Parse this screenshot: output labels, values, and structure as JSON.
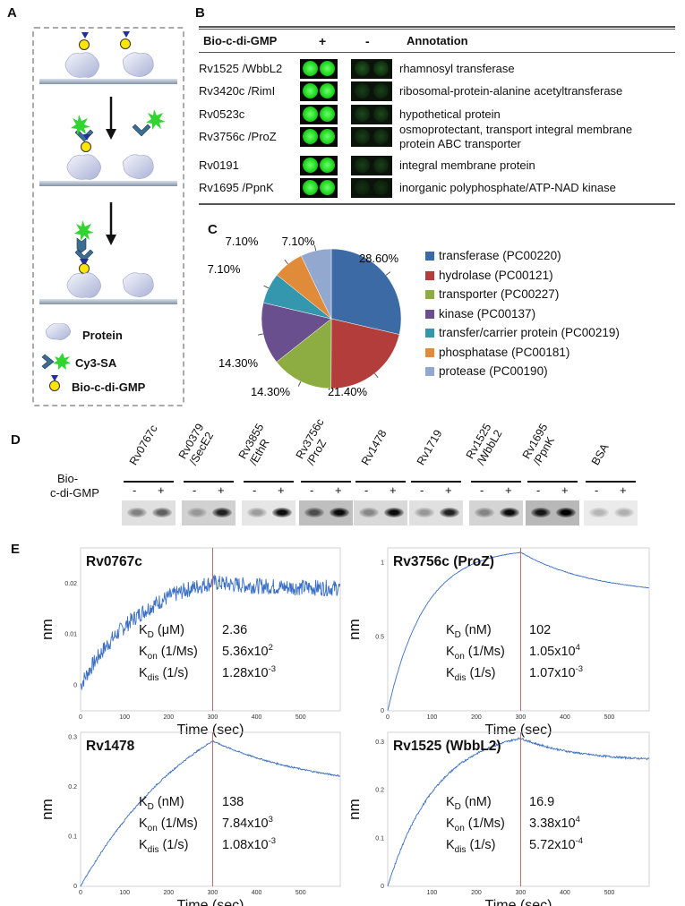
{
  "panels": {
    "a": "A",
    "b": "B",
    "c": "C",
    "d": "D",
    "e": "E"
  },
  "panel_a": {
    "legend": [
      {
        "icon": "protein-icon",
        "label": "Protein"
      },
      {
        "icon": "cy3-sa-icon",
        "label": "Cy3-SA"
      },
      {
        "icon": "bio-c-di-gmp-icon",
        "label": "Bio-c-di-GMP"
      }
    ]
  },
  "panel_b": {
    "header": {
      "col1": "Bio-c-di-GMP",
      "col2": "+",
      "col3": "-",
      "col4": "Annotation"
    },
    "rows": [
      {
        "name": "Rv1525 /WbbL2",
        "annotation": "rhamnosyl transferase",
        "annotation2": "",
        "minus_intensity": 0.45
      },
      {
        "name": "Rv3420c /RimI",
        "annotation": "ribosomal-protein-alanine acetyltransferase",
        "annotation2": "",
        "minus_intensity": 0.3
      },
      {
        "name": "Rv0523c",
        "annotation": "hypothetical protein",
        "annotation2": "",
        "minus_intensity": 0.35
      },
      {
        "name": "Rv3756c /ProZ",
        "annotation": "osmoprotectant, transport integral membrane",
        "annotation2": "protein ABC transporter",
        "minus_intensity": 0.3
      },
      {
        "name": "Rv0191",
        "annotation": "integral membrane protein",
        "annotation2": "",
        "minus_intensity": 0.3
      },
      {
        "name": "Rv1695 /PpnK",
        "annotation": "inorganic polyphosphate/ATP-NAD kinase",
        "annotation2": "",
        "minus_intensity": 0.2
      }
    ]
  },
  "chart_data": [
    {
      "type": "pie",
      "panel": "C",
      "slices": [
        {
          "label": "transferase (PC00220)",
          "value": 28.6,
          "pct_label": "28.60%",
          "color": "#3b6aa5"
        },
        {
          "label": "hydrolase (PC00121)",
          "value": 21.4,
          "pct_label": "21.40%",
          "color": "#b33d3b"
        },
        {
          "label": "transporter (PC00227)",
          "value": 14.3,
          "pct_label": "14.30%",
          "color": "#8dac42"
        },
        {
          "label": "kinase (PC00137)",
          "value": 14.3,
          "pct_label": "14.30%",
          "color": "#6a4f8e"
        },
        {
          "label": "transfer/carrier protein (PC00219)",
          "value": 7.1,
          "pct_label": "7.10%",
          "color": "#3597ad"
        },
        {
          "label": "phosphatase (PC00181)",
          "value": 7.1,
          "pct_label": "7.10%",
          "color": "#e08b3a"
        },
        {
          "label": "protease (PC00190)",
          "value": 7.1,
          "pct_label": "7.10%",
          "color": "#92a8ce"
        }
      ]
    },
    {
      "type": "line",
      "panel": "E",
      "title": "Rv0767c",
      "xlabel": "Time (sec)",
      "ylabel": "nm",
      "xlim": [
        0,
        590
      ],
      "ylim": [
        -0.005,
        0.027
      ],
      "xticks": [
        0,
        100,
        200,
        300,
        400,
        500
      ],
      "yticks": [
        0,
        0.01,
        0.02
      ],
      "ytick_labels": [
        "0",
        "0.01",
        "0.02"
      ],
      "switch_time": 300,
      "assoc": {
        "start": 0.0,
        "plateau": 0.023,
        "k": 0.007
      },
      "dissoc": {
        "end": 0.019,
        "k": 0.008
      },
      "noise": 0.0016,
      "params": [
        {
          "name": "K",
          "sub": "D",
          "unit": "(μM)",
          "value": "2.36",
          "sup": ""
        },
        {
          "name": "K",
          "sub": "on",
          "unit": "(1/Ms)",
          "value": "5.36x10",
          "sup": "2"
        },
        {
          "name": "K",
          "sub": "dis",
          "unit": "(1/s)",
          "value": "1.28x10",
          "sup": "-3"
        }
      ]
    },
    {
      "type": "line",
      "panel": "E",
      "title": "Rv3756c (ProZ)",
      "xlabel": "Time (sec)",
      "ylabel": "nm",
      "xlim": [
        0,
        590
      ],
      "ylim": [
        0,
        1.1
      ],
      "xticks": [
        0,
        100,
        200,
        300,
        400,
        500
      ],
      "yticks": [
        0,
        0.5,
        1
      ],
      "ytick_labels": [
        "0",
        "0.5",
        "1"
      ],
      "switch_time": 300,
      "assoc": {
        "start": 0.0,
        "plateau": 1.1,
        "k": 0.012
      },
      "dissoc": {
        "end": 0.78,
        "k": 0.006
      },
      "noise": 0.002,
      "params": [
        {
          "name": "K",
          "sub": "D",
          "unit": "(nM)",
          "value": "102",
          "sup": ""
        },
        {
          "name": "K",
          "sub": "on",
          "unit": "(1/Ms)",
          "value": "1.05x10",
          "sup": "4"
        },
        {
          "name": "K",
          "sub": "dis",
          "unit": "(1/s)",
          "value": "1.07x10",
          "sup": "-3"
        }
      ]
    },
    {
      "type": "line",
      "panel": "E",
      "title": "Rv1478",
      "xlabel": "Time (sec)",
      "ylabel": "nm",
      "xlim": [
        0,
        590
      ],
      "ylim": [
        0,
        0.31
      ],
      "xticks": [
        0,
        100,
        200,
        300,
        400,
        500
      ],
      "yticks": [
        0,
        0.1,
        0.2,
        0.3
      ],
      "ytick_labels": [
        "0",
        "0.1",
        "0.2",
        "0.3"
      ],
      "switch_time": 300,
      "assoc": {
        "start": 0.0,
        "plateau": 0.45,
        "k": 0.0035
      },
      "dissoc": {
        "end": 0.19,
        "k": 0.004
      },
      "noise": 0.0015,
      "params": [
        {
          "name": "K",
          "sub": "D",
          "unit": "(nM)",
          "value": "138",
          "sup": ""
        },
        {
          "name": "K",
          "sub": "on",
          "unit": "(1/Ms)",
          "value": "7.84x10",
          "sup": "3"
        },
        {
          "name": "K",
          "sub": "dis",
          "unit": "(1/s)",
          "value": "1.08x10",
          "sup": "-3"
        }
      ]
    },
    {
      "type": "line",
      "panel": "E",
      "title": "Rv1525 (WbbL2)",
      "xlabel": "Time (sec)",
      "ylabel": "nm",
      "xlim": [
        0,
        590
      ],
      "ylim": [
        0,
        0.32
      ],
      "xticks": [
        100,
        200,
        300,
        400,
        500
      ],
      "yticks": [
        0,
        0.1,
        0.2,
        0.3
      ],
      "ytick_labels": [
        "0",
        "0.1",
        "0.2",
        "0.3"
      ],
      "switch_time": 300,
      "assoc": {
        "start": 0.0,
        "plateau": 0.33,
        "k": 0.009
      },
      "dissoc": {
        "end": 0.26,
        "k": 0.008
      },
      "noise": 0.002,
      "params": [
        {
          "name": "K",
          "sub": "D",
          "unit": "(nM)",
          "value": "16.9",
          "sup": ""
        },
        {
          "name": "K",
          "sub": "on",
          "unit": "(1/Ms)",
          "value": "3.38x10",
          "sup": "4"
        },
        {
          "name": "K",
          "sub": "dis",
          "unit": "(1/s)",
          "value": "5.72x10",
          "sup": "-4"
        }
      ]
    }
  ],
  "panel_d": {
    "row_label_1": "Bio-",
    "row_label_2": "c-di-GMP",
    "minus": "-",
    "plus": "+",
    "lanes": [
      {
        "label": "Rv0767c",
        "label2": "",
        "minus_band": 0.35,
        "plus_band": 0.55,
        "bg": 0.88
      },
      {
        "label": "Rv0379",
        "label2": "/SecE2",
        "minus_band": 0.15,
        "plus_band": 0.85,
        "bg": 0.82
      },
      {
        "label": "Rv3855",
        "label2": "/EthR",
        "minus_band": 0.2,
        "plus_band": 0.95,
        "bg": 0.9
      },
      {
        "label": "Rv3756c",
        "label2": "/ProZ",
        "minus_band": 0.6,
        "plus_band": 0.95,
        "bg": 0.75
      },
      {
        "label": "Rv1478",
        "label2": "",
        "minus_band": 0.3,
        "plus_band": 0.95,
        "bg": 0.85
      },
      {
        "label": "Rv1719",
        "label2": "",
        "minus_band": 0.2,
        "plus_band": 0.85,
        "bg": 0.88
      },
      {
        "label": "Rv1525",
        "label2": "/WbbL2",
        "minus_band": 0.3,
        "plus_band": 0.95,
        "bg": 0.83
      },
      {
        "label": "Rv1695",
        "label2": "/PpnK",
        "minus_band": 0.9,
        "plus_band": 1.0,
        "bg": 0.72
      },
      {
        "label": "BSA",
        "label2": "",
        "minus_band": 0.05,
        "plus_band": 0.08,
        "bg": 0.92
      }
    ]
  },
  "colors": {
    "spot_green": "#22d822",
    "kinetic_line": "#3a6fc4",
    "switch_line": "#d9534f",
    "dashed_border": "#aaaaaa"
  }
}
